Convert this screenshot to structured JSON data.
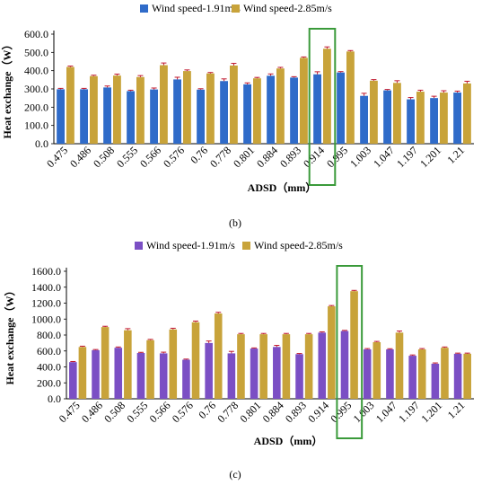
{
  "chart_data": [
    {
      "type": "bar",
      "panel": "(b)",
      "xlabel": "ADSD（mm）",
      "ylabel": "Heat exchange（W）",
      "ylim": [
        0,
        600
      ],
      "yticks": [
        "0.0",
        "100.0",
        "200.0",
        "300.0",
        "400.0",
        "500.0",
        "600.0"
      ],
      "categories": [
        "0.475",
        "0.486",
        "0.508",
        "0.555",
        "0.566",
        "0.576",
        "0.76",
        "0.778",
        "0.801",
        "0.884",
        "0.893",
        "0.914",
        "0.995",
        "1.003",
        "1.047",
        "1.197",
        "1.201",
        "1.21"
      ],
      "highlight": "0.914",
      "highlight_color": "#3a9a3a",
      "legend_position": "top",
      "series": [
        {
          "name": "Wind speed-1.91m/s",
          "color": "#2f6bc9",
          "values": [
            298,
            298,
            308,
            288,
            297,
            352,
            296,
            343,
            325,
            372,
            362,
            380,
            390,
            262,
            292,
            243,
            250,
            280
          ],
          "errors": [
            5,
            5,
            8,
            5,
            8,
            12,
            5,
            12,
            8,
            10,
            5,
            14,
            5,
            14,
            5,
            10,
            10,
            8
          ]
        },
        {
          "name": "Wind speed-2.85m/s",
          "color": "#c8a33a",
          "values": [
            420,
            370,
            373,
            365,
            430,
            398,
            385,
            428,
            358,
            412,
            470,
            520,
            505,
            345,
            333,
            285,
            280,
            330
          ],
          "errors": [
            5,
            5,
            8,
            8,
            12,
            6,
            5,
            12,
            5,
            6,
            5,
            10,
            5,
            6,
            12,
            8,
            10,
            12
          ]
        }
      ]
    },
    {
      "type": "bar",
      "panel": "(c)",
      "xlabel": "ADSD（mm）",
      "ylabel": "Heat exchange（W）",
      "ylim": [
        0,
        1600
      ],
      "yticks": [
        "0.0",
        "200.0",
        "400.0",
        "600.0",
        "800.0",
        "1000.0",
        "1200.0",
        "1400.0",
        "1600.0"
      ],
      "categories": [
        "0.475",
        "0.486",
        "0.508",
        "0.555",
        "0.566",
        "0.576",
        "0.76",
        "0.778",
        "0.801",
        "0.884",
        "0.893",
        "0.914",
        "0.995",
        "1.003",
        "1.047",
        "1.197",
        "1.201",
        "1.21"
      ],
      "highlight": "0.995",
      "highlight_color": "#3a9a3a",
      "legend_position": "top",
      "series": [
        {
          "name": "Wind speed-1.91m/s",
          "color": "#7b4fc4",
          "values": [
            460,
            610,
            640,
            575,
            570,
            490,
            700,
            570,
            630,
            650,
            560,
            830,
            850,
            620,
            620,
            540,
            440,
            565
          ],
          "errors": [
            8,
            8,
            10,
            8,
            15,
            8,
            25,
            25,
            8,
            20,
            8,
            10,
            8,
            10,
            8,
            10,
            10,
            8
          ]
        },
        {
          "name": "Wind speed-2.85m/s",
          "color": "#c8a33a",
          "values": [
            650,
            900,
            860,
            735,
            870,
            960,
            1070,
            810,
            810,
            810,
            810,
            1160,
            1350,
            710,
            830,
            620,
            640,
            565
          ],
          "errors": [
            10,
            10,
            20,
            10,
            15,
            15,
            15,
            10,
            10,
            10,
            10,
            10,
            10,
            10,
            20,
            10,
            10,
            8
          ]
        }
      ]
    }
  ]
}
